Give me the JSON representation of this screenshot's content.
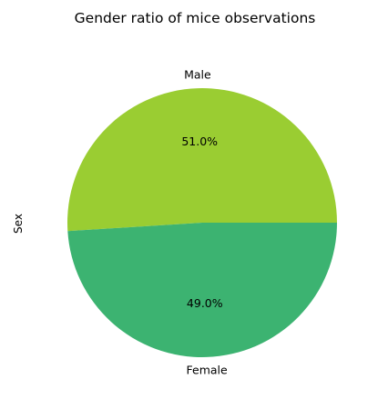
{
  "chart_data": {
    "type": "pie",
    "title": "Gender ratio of mice observations",
    "ylabel": "Sex",
    "slices": [
      {
        "label": "Male",
        "value": 51.0,
        "pct_label": "51.0%",
        "color": "#9acd32"
      },
      {
        "label": "Female",
        "value": 49.0,
        "pct_label": "49.0%",
        "color": "#3cb371"
      }
    ]
  }
}
